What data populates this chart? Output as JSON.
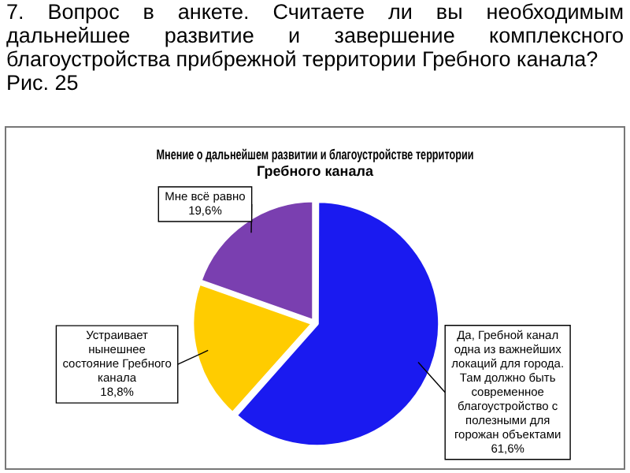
{
  "chart_data": {
    "type": "pie",
    "title": "Мнение о дальнейшем развитии и благоустройстве территории Гребного канала",
    "annotations": [
      "7. Вопрос в анкете. Считаете ли вы необходимым дальнейшее развитие и завершение комплексного благоустройства прибрежной территории Гребного канала?",
      "Рис. 25"
    ],
    "categories": [
      "Да, Гребной канал одна из важнейших локаций для города. Там должно быть современное благоустройство с полезными для горожан объектами",
      "Устраивает нынешнее состояние Гребного канала",
      "Мне всё равно"
    ],
    "values": [
      61.6,
      18.8,
      19.6
    ],
    "value_labels": [
      "61,6%",
      "18,8%",
      "19,6%"
    ],
    "colors": [
      "#1a1af0",
      "#ffcc00",
      "#7a3fb0"
    ],
    "legend": false
  }
}
